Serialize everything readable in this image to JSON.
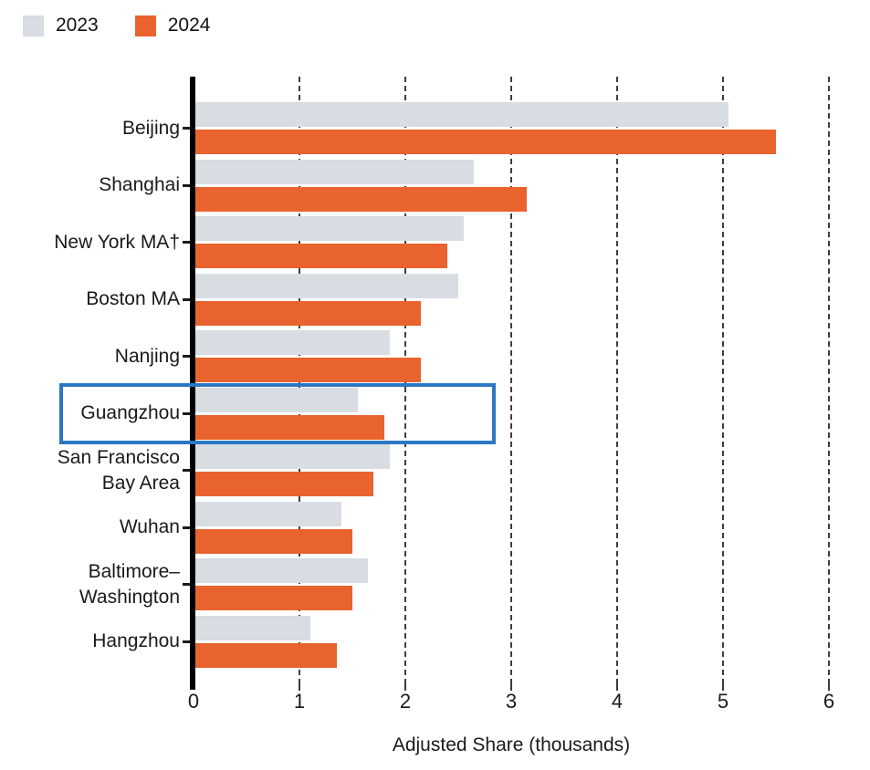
{
  "legend": {
    "items": [
      {
        "label": "2023",
        "color": "#d8dde3"
      },
      {
        "label": "2024",
        "color": "#e9632e"
      }
    ]
  },
  "colors": {
    "bar_2023": "#d8dde3",
    "bar_2024": "#e9632e",
    "highlight_box": "#2b77c2",
    "axis": "#000000",
    "gridline": "#3f3f3f",
    "text": "#1a1a1a"
  },
  "chart_data": {
    "type": "bar",
    "orientation": "horizontal",
    "categories": [
      "Beijing",
      "Shanghai",
      "New York MA†",
      "Boston MA",
      "Nanjing",
      "Guangzhou",
      "San Francisco Bay Area",
      "Wuhan",
      "Baltimore–Washington",
      "Hangzhou"
    ],
    "categories_lines": [
      [
        "Beijing"
      ],
      [
        "Shanghai"
      ],
      [
        "New York MA†"
      ],
      [
        "Boston MA"
      ],
      [
        "Nanjing"
      ],
      [
        "Guangzhou"
      ],
      [
        "San Francisco",
        "Bay Area"
      ],
      [
        "Wuhan"
      ],
      [
        "Baltimore–",
        "Washington"
      ],
      [
        "Hangzhou"
      ]
    ],
    "series": [
      {
        "name": "2023",
        "color": "#d8dde3",
        "values": [
          5.05,
          2.65,
          2.55,
          2.5,
          1.85,
          1.55,
          1.85,
          1.4,
          1.65,
          1.1
        ]
      },
      {
        "name": "2024",
        "color": "#e9632e",
        "values": [
          5.5,
          3.15,
          2.4,
          2.15,
          2.15,
          1.8,
          1.7,
          1.5,
          1.5,
          1.35
        ]
      }
    ],
    "xlabel": "Adjusted Share (thousands)",
    "xlim": [
      0,
      6
    ],
    "xticks": [
      0,
      1,
      2,
      3,
      4,
      5,
      6
    ],
    "grid": "vertical-dashed",
    "legend_position": "top-left",
    "annotations": [
      {
        "type": "highlight-box",
        "category": "Guangzhou",
        "color": "#2b77c2"
      }
    ]
  }
}
